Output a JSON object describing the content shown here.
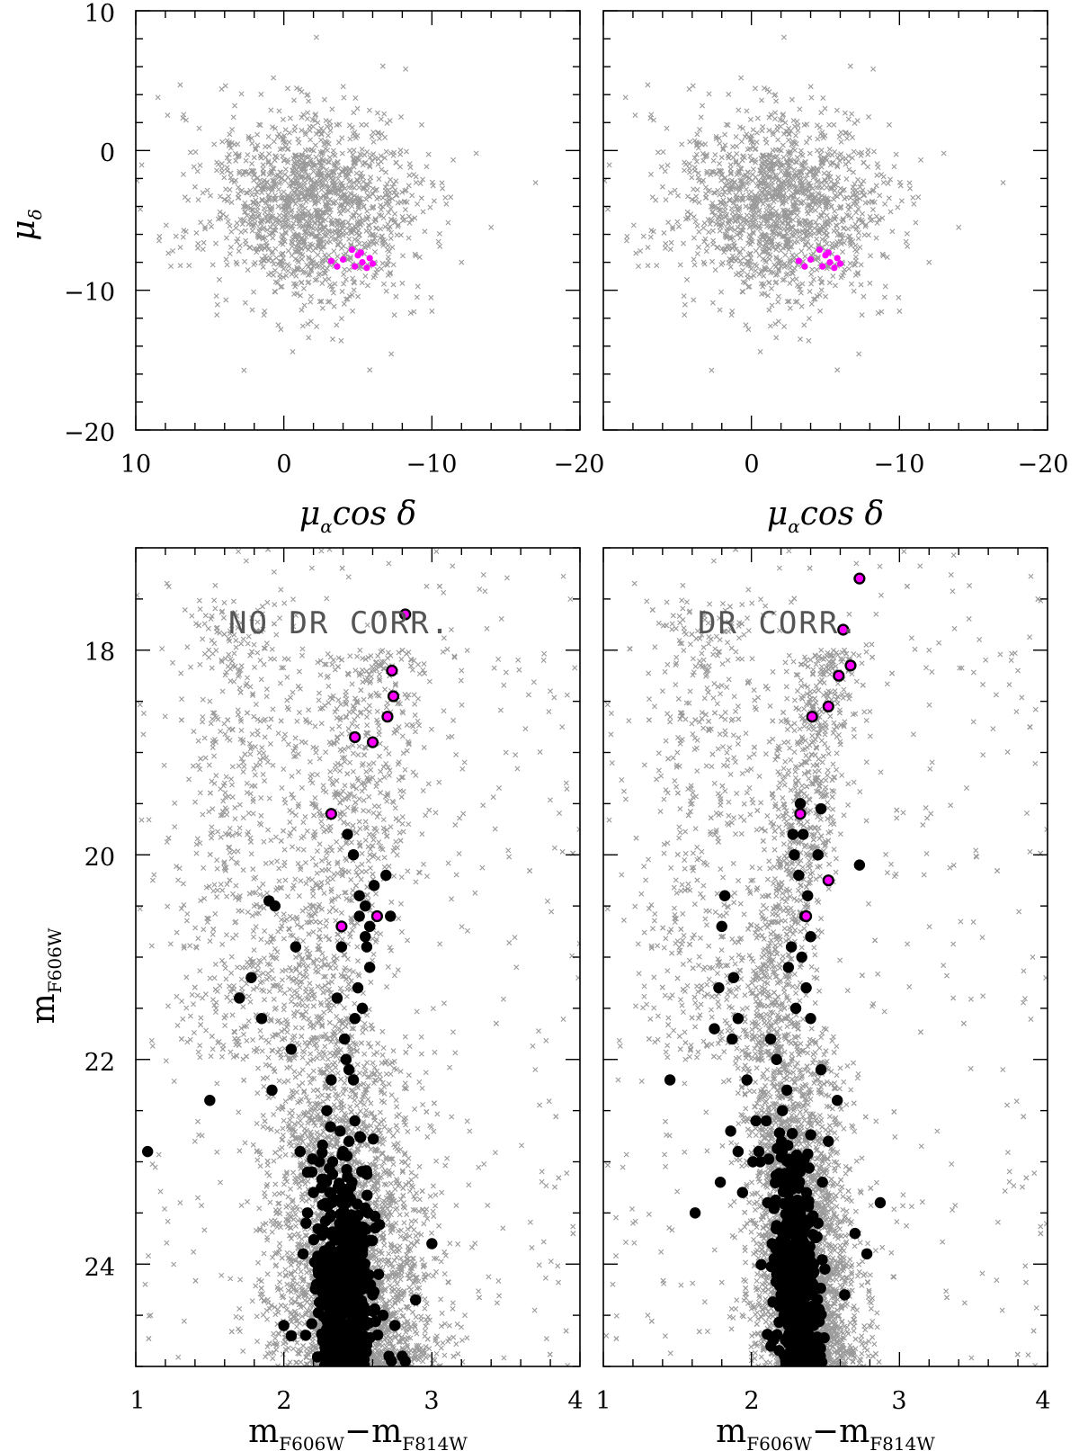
{
  "figure": {
    "panels_top": [
      {
        "id": "pm-left"
      },
      {
        "id": "pm-right"
      }
    ],
    "panels_bottom": [
      {
        "id": "cmd-left",
        "annotation": "NO DR CORR."
      },
      {
        "id": "cmd-right",
        "annotation": "DR CORR."
      }
    ],
    "top_axes": {
      "ylabel_main": "μ",
      "ylabel_sub": "δ",
      "xlabel_main_a": "μ",
      "xlabel_sub": "α",
      "xlabel_main_b": "cos δ",
      "x_ticks": [
        "10",
        "0",
        "−10",
        "−20"
      ],
      "y_ticks": [
        "10",
        "0",
        "−10",
        "−20"
      ]
    },
    "bottom_axes": {
      "ylabel_main": "m",
      "ylabel_sub": "F606W",
      "xlabel_m1": "m",
      "xlabel_s1": "F606W",
      "xlabel_minus": "−",
      "xlabel_m2": "m",
      "xlabel_s2": "F814W",
      "x_ticks": [
        "1",
        "2",
        "3",
        "4"
      ],
      "y_ticks": [
        "18",
        "20",
        "22",
        "24"
      ]
    }
  },
  "chart_data": [
    {
      "type": "scatter",
      "panel": "pm-left",
      "xlabel": "μα cos δ",
      "ylabel": "μδ",
      "xlim": [
        10,
        -20
      ],
      "ylim": [
        -20,
        10
      ],
      "series": [
        {
          "name": "",
          "marker": "x",
          "color": "#999999",
          "x": [
            8.5,
            7,
            6,
            5,
            4,
            3,
            2,
            1,
            0,
            -1,
            -2,
            -3,
            -4,
            -5,
            -6,
            -7,
            -8,
            -9,
            -10,
            -12,
            -14,
            -17,
            4.2,
            -2.2,
            0.7,
            0.2,
            2.6,
            1.3,
            -0.6,
            -3.3,
            -5.8,
            -7.4
          ],
          "y": [
            3.8,
            4.7,
            -2.6,
            -5.1,
            -3.5,
            -1.5,
            -0.5,
            0.3,
            0.6,
            -0.4,
            -1.5,
            -2.7,
            -3.9,
            -5.1,
            -6.5,
            -8.2,
            -9.5,
            -10.5,
            -11.5,
            -8,
            -5.5,
            -2.3,
            4.4,
            8.1,
            5.2,
            -12.8,
            -10.9,
            -11.5,
            -14.4,
            -13.5,
            -15.7,
            -9.6
          ]
        },
        {
          "name": "",
          "marker": "dot",
          "color": "#ff00ff",
          "x": [
            -3.2,
            -3.6,
            -4.0,
            -4.6,
            -5.0,
            -5.3,
            -5.6,
            -5.8,
            -5.2,
            -4.8,
            -6.0
          ],
          "y": [
            -7.9,
            -8.3,
            -7.8,
            -7.1,
            -7.5,
            -8.0,
            -8.4,
            -7.7,
            -7.3,
            -8.3,
            -8.1
          ]
        }
      ]
    },
    {
      "type": "scatter",
      "panel": "pm-right",
      "xlabel": "μα cos δ",
      "ylabel": "μδ",
      "xlim": [
        10,
        -20
      ],
      "ylim": [
        -20,
        10
      ],
      "series": [
        {
          "name": "",
          "marker": "x",
          "color": "#999999",
          "x": [
            8.5,
            7,
            6,
            5,
            4,
            3,
            2,
            1,
            0,
            -1,
            -2,
            -3,
            -4,
            -5,
            -6,
            -7,
            -8,
            -9,
            -10,
            -12,
            -14,
            -17,
            4.2,
            -2.2,
            0.7,
            0.2,
            2.6,
            1.3,
            -0.6,
            -3.3,
            -5.8,
            -7.4
          ],
          "y": [
            3.8,
            4.7,
            -2.6,
            -5.1,
            -3.5,
            -1.5,
            -0.5,
            0.3,
            0.6,
            -0.4,
            -1.5,
            -2.7,
            -3.9,
            -5.1,
            -6.5,
            -8.2,
            -9.5,
            -10.5,
            -11.5,
            -8,
            -5.5,
            -2.3,
            4.4,
            8.1,
            5.2,
            -12.8,
            -10.9,
            -11.5,
            -14.4,
            -13.5,
            -15.7,
            -9.6
          ]
        },
        {
          "name": "",
          "marker": "dot",
          "color": "#ff00ff",
          "x": [
            -3.2,
            -3.6,
            -4.0,
            -4.6,
            -5.0,
            -5.3,
            -5.6,
            -5.8,
            -5.2,
            -4.8,
            -6.0
          ],
          "y": [
            -7.9,
            -8.3,
            -7.8,
            -7.1,
            -7.5,
            -8.0,
            -8.4,
            -7.7,
            -7.3,
            -8.3,
            -8.1
          ]
        }
      ]
    },
    {
      "type": "scatter",
      "panel": "cmd-left",
      "xlabel": "mF606W − mF814W",
      "ylabel": "mF606W",
      "xlim": [
        1,
        4
      ],
      "ylim": [
        25,
        17
      ],
      "series": [
        {
          "name": "",
          "marker": "x",
          "color": "#999999",
          "x": [
            1.5,
            1.6,
            1.7,
            1.8,
            1.9,
            2.3,
            2.5,
            2.8,
            3.2,
            3.5,
            3.8,
            1.4,
            1.3,
            1.1
          ],
          "y": [
            18.5,
            19.3,
            19.8,
            20.5,
            21.2,
            19.6,
            20.2,
            18.6,
            18.2,
            19.0,
            18.4,
            22.8,
            23.4,
            24.5
          ]
        },
        {
          "name": "",
          "marker": "dot",
          "color": "#000000",
          "x": [
            2.32,
            2.38,
            2.45,
            2.52,
            2.41,
            2.36,
            2.47,
            2.43,
            2.3,
            2.55,
            2.28,
            2.6,
            2.35,
            2.5,
            2.42,
            2.39,
            2.46,
            2.33,
            2.57,
            2.26,
            2.44,
            2.48,
            2.4,
            2.37,
            2.53,
            2.31,
            2.64,
            2.22,
            2.67,
            2.19,
            2.71,
            2.15,
            2.75,
            2.11,
            2.8,
            2.05,
            2.89,
            2.0,
            1.92,
            1.85,
            1.78,
            1.7,
            1.5,
            1.08,
            3.0,
            2.82,
            2.55,
            2.58,
            2.5,
            2.48,
            2.42,
            2.47,
            2.53,
            2.55,
            2.51,
            2.47,
            2.43,
            2.39,
            2.36,
            2.41,
            2.56,
            2.61,
            2.69,
            2.72,
            2.44,
            2.38,
            2.32,
            2.29,
            2.24,
            2.2,
            2.16,
            2.13,
            1.9,
            1.94,
            2.08,
            2.05,
            2.51,
            2.58
          ],
          "y": [
            24.9,
            24.8,
            24.7,
            24.85,
            24.6,
            24.5,
            24.4,
            24.3,
            24.2,
            24.6,
            24.4,
            24.3,
            24.0,
            23.8,
            23.6,
            23.4,
            23.2,
            23.0,
            23.5,
            24.7,
            22.8,
            22.6,
            22.9,
            23.7,
            23.9,
            23.3,
            24.1,
            24.2,
            24.5,
            23.1,
            24.9,
            23.6,
            24.6,
            22.9,
            24.9,
            24.7,
            24.35,
            24.6,
            22.3,
            21.6,
            21.2,
            21.4,
            22.4,
            22.9,
            23.8,
            24.95,
            20.8,
            21.1,
            21.3,
            21.6,
            22.0,
            22.2,
            21.5,
            20.5,
            20.4,
            20.0,
            19.8,
            20.9,
            21.4,
            21.8,
            20.9,
            20.3,
            20.2,
            20.6,
            22.1,
            22.7,
            22.2,
            22.5,
            23.0,
            23.3,
            23.5,
            23.9,
            20.45,
            20.5,
            20.9,
            21.9,
            20.6,
            20.7
          ],
          "count_shown": "many"
        },
        {
          "name": "",
          "marker": "dot-outline",
          "color": "#ff00ff",
          "x": [
            2.82,
            2.73,
            2.74,
            2.7,
            2.48,
            2.6,
            2.32,
            2.63,
            2.39
          ],
          "y": [
            17.65,
            18.2,
            18.45,
            18.65,
            18.85,
            18.9,
            19.6,
            20.6,
            20.7
          ]
        }
      ]
    },
    {
      "type": "scatter",
      "panel": "cmd-right",
      "xlabel": "mF606W − mF814W",
      "ylabel": "mF606W",
      "xlim": [
        1,
        4
      ],
      "ylim": [
        25,
        17
      ],
      "series": [
        {
          "name": "",
          "marker": "x",
          "color": "#999999",
          "x": [
            1.4,
            1.5,
            1.6,
            1.7,
            1.8,
            2.3,
            2.5,
            2.8,
            3.2,
            3.5,
            3.8,
            1.1,
            1.2,
            1.3,
            3.9
          ],
          "y": [
            18.4,
            19.0,
            19.5,
            20.1,
            20.8,
            19.6,
            19.9,
            18.6,
            18.0,
            18.7,
            18.2,
            22.2,
            23.6,
            24.5,
            21.0
          ]
        },
        {
          "name": "",
          "marker": "dot",
          "color": "#000000",
          "x": [
            2.28,
            2.31,
            2.25,
            2.33,
            2.22,
            2.36,
            2.2,
            2.39,
            2.17,
            2.42,
            2.14,
            2.45,
            2.11,
            2.48,
            2.06,
            2.52,
            2.03,
            2.58,
            1.97,
            2.63,
            1.91,
            2.7,
            1.86,
            2.78,
            1.79,
            2.87,
            1.62,
            1.45,
            1.75,
            1.78,
            1.8,
            1.82,
            1.88,
            1.91,
            1.87,
            2.29,
            2.32,
            2.36,
            2.34,
            2.37,
            2.4,
            2.27,
            2.25,
            2.3,
            2.45,
            2.47,
            2.35,
            2.33,
            2.28,
            2.38,
            2.4,
            2.73,
            2.47,
            2.24,
            2.21,
            2.17,
            2.13,
            2.1,
            2.05,
            2.01,
            1.94,
            2.42,
            2.39,
            2.35,
            2.3,
            2.26
          ],
          "y": [
            24.9,
            24.8,
            24.7,
            24.6,
            24.5,
            24.4,
            24.3,
            24.2,
            24.1,
            24.0,
            23.8,
            23.6,
            23.4,
            23.2,
            23.0,
            22.8,
            22.6,
            22.4,
            22.2,
            24.3,
            22.9,
            23.7,
            22.7,
            23.9,
            23.2,
            23.4,
            23.5,
            22.2,
            21.7,
            21.3,
            20.7,
            20.4,
            21.2,
            21.6,
            21.8,
            20.0,
            20.2,
            20.6,
            21.0,
            21.3,
            21.6,
            20.9,
            21.1,
            21.5,
            20.0,
            22.1,
            19.8,
            19.5,
            19.8,
            20.4,
            20.8,
            20.1,
            19.55,
            22.3,
            22.5,
            22.0,
            21.8,
            22.6,
            22.9,
            23.0,
            23.3,
            24.6,
            24.95,
            24.9,
            24.7,
            24.5
          ],
          "count_shown": "many"
        },
        {
          "name": "",
          "marker": "dot-outline",
          "color": "#ff00ff",
          "x": [
            2.73,
            2.62,
            2.67,
            2.59,
            2.52,
            2.41,
            2.33,
            2.52,
            2.37
          ],
          "y": [
            17.3,
            17.8,
            18.15,
            18.25,
            18.55,
            18.65,
            19.6,
            20.25,
            20.6
          ]
        }
      ]
    }
  ]
}
